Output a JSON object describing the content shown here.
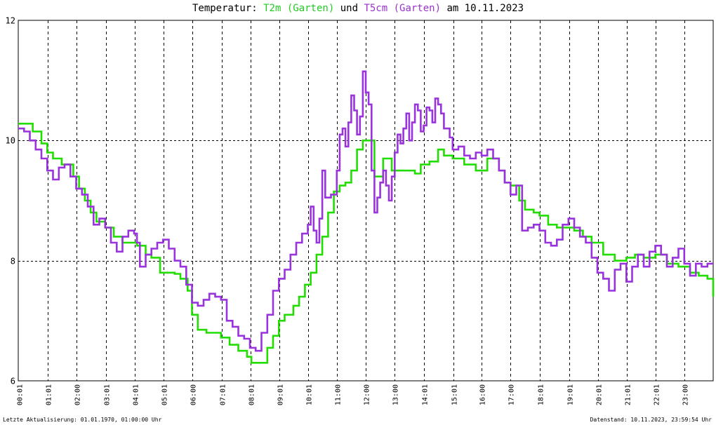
{
  "title": {
    "prefix": "Temperatur: ",
    "series1": "T2m (Garten)",
    "joiner": " und ",
    "series2": "T5cm (Garten)",
    "suffix": " am 10.11.2023"
  },
  "footer": {
    "left": "Letzte Aktualisierung: 01.01.1970, 01:00:00 Uhr",
    "right": "Datenstand: 10.11.2023, 23:59:54 Uhr"
  },
  "chart_data": {
    "type": "line",
    "title": "Temperatur: T2m (Garten) und T5cm (Garten) am 10.11.2023",
    "xlabel": "",
    "ylabel": "",
    "xlim": [
      0,
      24
    ],
    "ylim": [
      6,
      12
    ],
    "y_ticks": [
      "6",
      "8",
      "10",
      "12"
    ],
    "y_tick_values": [
      6,
      8,
      10,
      12
    ],
    "x_ticks": [
      "00:01",
      "01:01",
      "02:00",
      "03:01",
      "04:01",
      "05:01",
      "06:00",
      "07:01",
      "08:01",
      "09:01",
      "10:01",
      "11:00",
      "12:00",
      "13:00",
      "14:01",
      "15:01",
      "16:00",
      "17:00",
      "18:01",
      "19:01",
      "20:01",
      "21:01",
      "22:01",
      "23:00"
    ],
    "x_tick_values": [
      0.02,
      1.02,
      2.0,
      3.02,
      4.02,
      5.02,
      6.0,
      7.02,
      8.02,
      9.02,
      10.02,
      11.0,
      12.0,
      13.0,
      14.02,
      15.02,
      16.0,
      17.0,
      18.02,
      19.02,
      20.02,
      21.02,
      22.02,
      23.0
    ],
    "grid": true,
    "step": true,
    "series": [
      {
        "name": "T2m (Garten)",
        "color": "#22dd00",
        "points": [
          [
            0.0,
            10.28
          ],
          [
            0.4,
            10.28
          ],
          [
            0.5,
            10.15
          ],
          [
            0.8,
            9.95
          ],
          [
            1.0,
            9.8
          ],
          [
            1.2,
            9.7
          ],
          [
            1.5,
            9.6
          ],
          [
            1.9,
            9.4
          ],
          [
            2.1,
            9.2
          ],
          [
            2.3,
            9.0
          ],
          [
            2.5,
            8.8
          ],
          [
            2.7,
            8.65
          ],
          [
            3.0,
            8.55
          ],
          [
            3.3,
            8.4
          ],
          [
            3.6,
            8.3
          ],
          [
            4.1,
            8.25
          ],
          [
            4.4,
            8.1
          ],
          [
            4.6,
            8.05
          ],
          [
            4.9,
            7.8
          ],
          [
            5.4,
            7.78
          ],
          [
            5.6,
            7.7
          ],
          [
            5.85,
            7.5
          ],
          [
            6.0,
            7.1
          ],
          [
            6.2,
            6.85
          ],
          [
            6.5,
            6.8
          ],
          [
            7.0,
            6.72
          ],
          [
            7.3,
            6.6
          ],
          [
            7.6,
            6.5
          ],
          [
            7.9,
            6.4
          ],
          [
            8.05,
            6.3
          ],
          [
            8.4,
            6.3
          ],
          [
            8.6,
            6.55
          ],
          [
            8.8,
            6.75
          ],
          [
            9.0,
            7.0
          ],
          [
            9.2,
            7.1
          ],
          [
            9.5,
            7.25
          ],
          [
            9.7,
            7.4
          ],
          [
            9.9,
            7.6
          ],
          [
            10.1,
            7.8
          ],
          [
            10.3,
            8.1
          ],
          [
            10.5,
            8.4
          ],
          [
            10.7,
            8.8
          ],
          [
            10.9,
            9.15
          ],
          [
            11.1,
            9.25
          ],
          [
            11.3,
            9.3
          ],
          [
            11.5,
            9.5
          ],
          [
            11.7,
            9.85
          ],
          [
            11.9,
            10.0
          ],
          [
            12.2,
            10.0
          ],
          [
            12.3,
            9.4
          ],
          [
            12.6,
            9.7
          ],
          [
            12.9,
            9.5
          ],
          [
            13.5,
            9.5
          ],
          [
            13.7,
            9.45
          ],
          [
            13.9,
            9.6
          ],
          [
            14.2,
            9.65
          ],
          [
            14.5,
            9.85
          ],
          [
            14.7,
            9.75
          ],
          [
            15.0,
            9.7
          ],
          [
            15.4,
            9.6
          ],
          [
            15.8,
            9.5
          ],
          [
            16.2,
            9.7
          ],
          [
            16.6,
            9.5
          ],
          [
            16.8,
            9.3
          ],
          [
            17.0,
            9.25
          ],
          [
            17.3,
            9.0
          ],
          [
            17.5,
            8.85
          ],
          [
            17.8,
            8.8
          ],
          [
            18.0,
            8.75
          ],
          [
            18.3,
            8.6
          ],
          [
            18.6,
            8.55
          ],
          [
            18.9,
            8.55
          ],
          [
            19.2,
            8.5
          ],
          [
            19.5,
            8.4
          ],
          [
            19.8,
            8.3
          ],
          [
            20.2,
            8.1
          ],
          [
            20.6,
            8.0
          ],
          [
            21.0,
            8.05
          ],
          [
            21.3,
            8.1
          ],
          [
            21.6,
            8.05
          ],
          [
            22.0,
            8.1
          ],
          [
            22.4,
            7.95
          ],
          [
            22.8,
            7.9
          ],
          [
            23.2,
            7.8
          ],
          [
            23.5,
            7.75
          ],
          [
            23.8,
            7.7
          ],
          [
            24.0,
            7.4
          ]
        ]
      },
      {
        "name": "T5cm (Garten)",
        "color": "#9933dd",
        "points": [
          [
            0.0,
            10.2
          ],
          [
            0.2,
            10.15
          ],
          [
            0.4,
            10.0
          ],
          [
            0.6,
            9.85
          ],
          [
            0.8,
            9.7
          ],
          [
            1.0,
            9.5
          ],
          [
            1.2,
            9.35
          ],
          [
            1.4,
            9.55
          ],
          [
            1.6,
            9.6
          ],
          [
            1.8,
            9.4
          ],
          [
            2.0,
            9.2
          ],
          [
            2.2,
            9.1
          ],
          [
            2.4,
            8.9
          ],
          [
            2.6,
            8.6
          ],
          [
            2.8,
            8.7
          ],
          [
            3.0,
            8.55
          ],
          [
            3.2,
            8.3
          ],
          [
            3.4,
            8.15
          ],
          [
            3.6,
            8.4
          ],
          [
            3.8,
            8.5
          ],
          [
            4.0,
            8.45
          ],
          [
            4.1,
            8.3
          ],
          [
            4.2,
            7.9
          ],
          [
            4.4,
            8.1
          ],
          [
            4.6,
            8.2
          ],
          [
            4.8,
            8.3
          ],
          [
            5.0,
            8.35
          ],
          [
            5.2,
            8.2
          ],
          [
            5.4,
            8.0
          ],
          [
            5.6,
            7.9
          ],
          [
            5.8,
            7.6
          ],
          [
            6.0,
            7.3
          ],
          [
            6.2,
            7.25
          ],
          [
            6.4,
            7.35
          ],
          [
            6.6,
            7.45
          ],
          [
            6.8,
            7.4
          ],
          [
            7.0,
            7.35
          ],
          [
            7.2,
            7.0
          ],
          [
            7.4,
            6.9
          ],
          [
            7.6,
            6.75
          ],
          [
            7.8,
            6.7
          ],
          [
            8.0,
            6.55
          ],
          [
            8.2,
            6.5
          ],
          [
            8.4,
            6.8
          ],
          [
            8.6,
            7.1
          ],
          [
            8.8,
            7.5
          ],
          [
            9.0,
            7.7
          ],
          [
            9.2,
            7.85
          ],
          [
            9.4,
            8.1
          ],
          [
            9.6,
            8.3
          ],
          [
            9.8,
            8.45
          ],
          [
            10.0,
            8.6
          ],
          [
            10.1,
            8.9
          ],
          [
            10.2,
            8.5
          ],
          [
            10.3,
            8.3
          ],
          [
            10.4,
            8.7
          ],
          [
            10.5,
            9.5
          ],
          [
            10.6,
            9.05
          ],
          [
            10.8,
            9.1
          ],
          [
            11.0,
            9.5
          ],
          [
            11.1,
            10.1
          ],
          [
            11.2,
            10.2
          ],
          [
            11.3,
            9.9
          ],
          [
            11.4,
            10.3
          ],
          [
            11.5,
            10.75
          ],
          [
            11.6,
            10.5
          ],
          [
            11.7,
            10.1
          ],
          [
            11.8,
            10.4
          ],
          [
            11.9,
            11.15
          ],
          [
            12.0,
            10.8
          ],
          [
            12.1,
            10.6
          ],
          [
            12.2,
            9.5
          ],
          [
            12.3,
            8.8
          ],
          [
            12.4,
            9.05
          ],
          [
            12.5,
            9.3
          ],
          [
            12.6,
            9.5
          ],
          [
            12.7,
            9.25
          ],
          [
            12.8,
            9.0
          ],
          [
            12.9,
            9.4
          ],
          [
            13.0,
            9.8
          ],
          [
            13.1,
            10.1
          ],
          [
            13.2,
            9.95
          ],
          [
            13.3,
            10.2
          ],
          [
            13.4,
            10.45
          ],
          [
            13.5,
            10.0
          ],
          [
            13.6,
            10.3
          ],
          [
            13.7,
            10.6
          ],
          [
            13.8,
            10.5
          ],
          [
            13.9,
            10.15
          ],
          [
            14.0,
            10.25
          ],
          [
            14.1,
            10.55
          ],
          [
            14.2,
            10.5
          ],
          [
            14.3,
            10.3
          ],
          [
            14.4,
            10.7
          ],
          [
            14.5,
            10.6
          ],
          [
            14.6,
            10.45
          ],
          [
            14.7,
            10.2
          ],
          [
            14.9,
            10.05
          ],
          [
            15.0,
            9.85
          ],
          [
            15.2,
            9.9
          ],
          [
            15.4,
            9.75
          ],
          [
            15.6,
            9.7
          ],
          [
            15.8,
            9.8
          ],
          [
            16.0,
            9.75
          ],
          [
            16.2,
            9.85
          ],
          [
            16.4,
            9.7
          ],
          [
            16.6,
            9.5
          ],
          [
            16.8,
            9.3
          ],
          [
            17.0,
            9.1
          ],
          [
            17.2,
            9.25
          ],
          [
            17.4,
            8.5
          ],
          [
            17.6,
            8.55
          ],
          [
            17.8,
            8.6
          ],
          [
            18.0,
            8.5
          ],
          [
            18.2,
            8.3
          ],
          [
            18.4,
            8.25
          ],
          [
            18.6,
            8.35
          ],
          [
            18.8,
            8.6
          ],
          [
            19.0,
            8.7
          ],
          [
            19.2,
            8.55
          ],
          [
            19.4,
            8.4
          ],
          [
            19.6,
            8.3
          ],
          [
            19.8,
            8.05
          ],
          [
            20.0,
            7.8
          ],
          [
            20.2,
            7.7
          ],
          [
            20.4,
            7.5
          ],
          [
            20.6,
            7.85
          ],
          [
            20.8,
            7.95
          ],
          [
            21.0,
            7.65
          ],
          [
            21.2,
            7.9
          ],
          [
            21.4,
            8.1
          ],
          [
            21.6,
            7.9
          ],
          [
            21.8,
            8.15
          ],
          [
            22.0,
            8.25
          ],
          [
            22.2,
            8.1
          ],
          [
            22.4,
            7.9
          ],
          [
            22.6,
            8.05
          ],
          [
            22.8,
            8.2
          ],
          [
            23.0,
            7.95
          ],
          [
            23.2,
            7.75
          ],
          [
            23.4,
            7.95
          ],
          [
            23.6,
            7.9
          ],
          [
            23.8,
            7.95
          ],
          [
            24.0,
            7.95
          ]
        ]
      }
    ]
  }
}
